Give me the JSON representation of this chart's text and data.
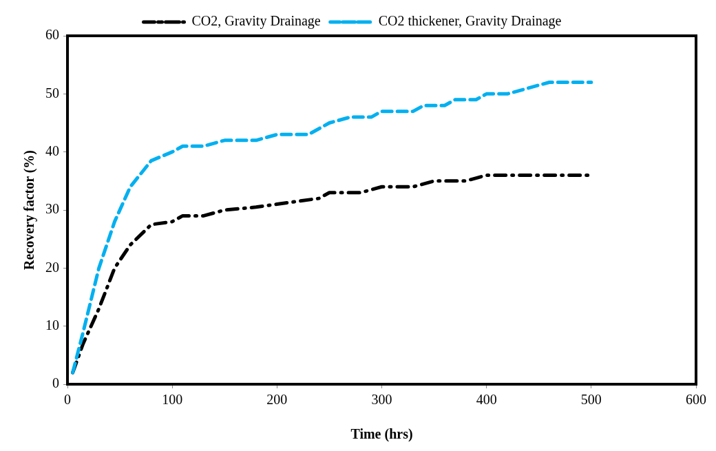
{
  "chart_data": {
    "type": "line",
    "xlabel": "Time (hrs)",
    "ylabel": "Recovery factor (%)",
    "xlim": [
      0,
      600
    ],
    "xticks": [
      0,
      100,
      200,
      300,
      400,
      500,
      600
    ],
    "ylim": [
      0,
      60
    ],
    "yticks": [
      0,
      10,
      20,
      30,
      40,
      50,
      60
    ],
    "grid": false,
    "legend": "top",
    "marker": "none",
    "series": [
      {
        "name": "CO2, Gravity Drainage",
        "color": "#000000",
        "line_style": "dashdot",
        "x": [
          5,
          15,
          30,
          45,
          60,
          80,
          100,
          110,
          130,
          150,
          180,
          200,
          240,
          250,
          280,
          300,
          330,
          350,
          380,
          400,
          500
        ],
        "values": [
          2,
          7,
          13,
          20,
          24,
          27.5,
          28,
          29,
          29,
          30,
          30.5,
          31,
          32,
          33,
          33,
          34,
          34,
          35,
          35,
          36,
          36
        ]
      },
      {
        "name": "CO2 thickener, Gravity Drainage",
        "color": "#00b0f0",
        "line_style": "dashed",
        "x": [
          5,
          15,
          30,
          45,
          60,
          80,
          100,
          110,
          130,
          150,
          180,
          200,
          230,
          250,
          270,
          290,
          300,
          330,
          340,
          360,
          370,
          390,
          400,
          420,
          440,
          460,
          500
        ],
        "values": [
          2,
          9,
          20,
          28,
          34,
          38.5,
          40,
          41,
          41,
          42,
          42,
          43,
          43,
          45,
          46,
          46,
          47,
          47,
          48,
          48,
          49,
          49,
          50,
          50,
          51,
          52,
          52
        ]
      }
    ]
  }
}
